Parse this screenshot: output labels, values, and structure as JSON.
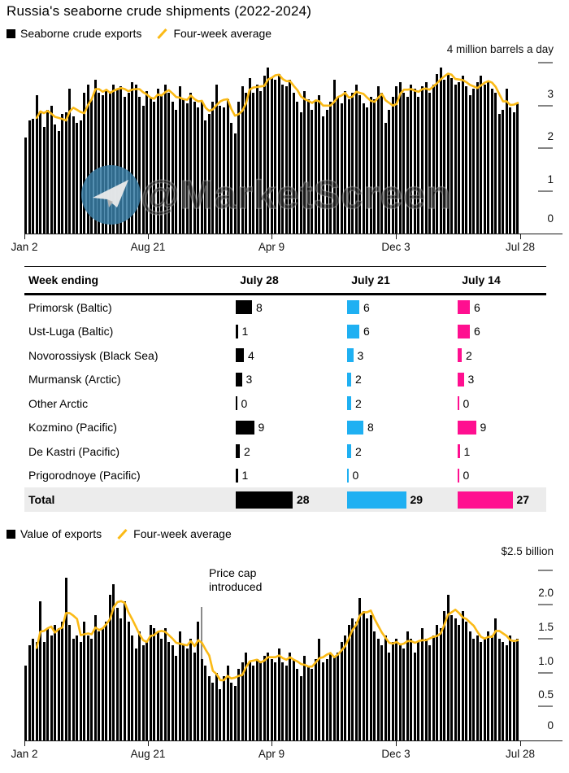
{
  "title": "Russia's seaborne crude shipments (2022-2024)",
  "watermark": {
    "text": "@MarketScreen",
    "icon": "telegram-icon"
  },
  "legend_top": {
    "bar_label": "Seaborne crude exports",
    "line_label": "Four-week average"
  },
  "legend_bottom": {
    "bar_label": "Value of exports",
    "line_label": "Four-week average"
  },
  "colors": {
    "bars": "#000000",
    "avg_line": "#fbba16",
    "col_july28": "#000000",
    "col_july21": "#1fb0f2",
    "col_july14": "#ff0f90",
    "total_row_bg": "#ececec",
    "watermark_blue": "#387da5"
  },
  "chart_data": [
    {
      "type": "bar",
      "name": "seaborne-crude-exports-volume",
      "y_axis": {
        "unit_label": "4 million barrels a day",
        "max": 4,
        "ticks": [
          3,
          2,
          1,
          0
        ],
        "tick_labels": [
          "3",
          "2",
          "1",
          "0"
        ],
        "dash_ticks": [
          4,
          3,
          2,
          1
        ]
      },
      "x_tick_labels": [
        "Jan 2",
        "Aug 21",
        "Apr 9",
        "Dec 3",
        "Jul 28"
      ],
      "series": [
        {
          "name": "Seaborne crude exports",
          "unit": "million barrels a day",
          "values": [
            2.25,
            2.65,
            2.7,
            3.25,
            2.85,
            2.5,
            2.9,
            3.0,
            2.55,
            2.4,
            2.8,
            2.85,
            3.4,
            2.75,
            2.6,
            2.65,
            3.3,
            3.5,
            3.15,
            3.6,
            3.3,
            3.25,
            3.35,
            3.3,
            3.5,
            3.4,
            3.45,
            3.2,
            3.3,
            3.55,
            3.5,
            3.2,
            3.0,
            3.35,
            3.2,
            3.1,
            3.4,
            3.25,
            3.5,
            3.3,
            3.1,
            2.9,
            3.45,
            3.15,
            3.05,
            3.3,
            3.1,
            2.95,
            3.1,
            2.65,
            2.8,
            3.1,
            3.5,
            3.0,
            2.95,
            3.15,
            2.6,
            2.35,
            3.1,
            3.45,
            3.3,
            3.65,
            3.3,
            3.5,
            3.35,
            3.7,
            3.9,
            3.65,
            3.6,
            3.75,
            3.5,
            3.45,
            3.6,
            3.3,
            3.1,
            2.85,
            3.35,
            3.15,
            2.9,
            3.1,
            3.25,
            2.75,
            2.9,
            3.1,
            3.6,
            3.2,
            3.05,
            3.35,
            3.15,
            3.3,
            3.5,
            3.25,
            3.05,
            2.95,
            3.2,
            3.15,
            3.45,
            3.3,
            2.6,
            2.9,
            3.2,
            3.45,
            3.55,
            3.3,
            3.2,
            3.5,
            3.4,
            3.2,
            3.45,
            3.55,
            3.3,
            3.5,
            3.75,
            3.9,
            3.6,
            3.75,
            3.65,
            3.5,
            3.55,
            3.7,
            3.45,
            3.25,
            3.4,
            3.55,
            3.7,
            3.5,
            3.55,
            3.4,
            3.3,
            2.8,
            2.9,
            3.4,
            2.95,
            2.85,
            3.05
          ]
        },
        {
          "name": "Four-week average",
          "derivation": "4-week rolling mean of exports series"
        }
      ]
    },
    {
      "type": "bar",
      "name": "value-of-exports",
      "y_axis": {
        "unit_label": "$2.5 billion",
        "max": 2.5,
        "ticks": [
          2.0,
          1.5,
          1.0,
          0.5,
          0
        ],
        "tick_labels": [
          "2.0",
          "1.5",
          "1.0",
          "0.5",
          "0"
        ],
        "dash_ticks": [
          2.5,
          2.0,
          1.5,
          1.0,
          0.5
        ]
      },
      "x_tick_labels": [
        "Jan 2",
        "Aug 21",
        "Apr 9",
        "Dec 3",
        "Jul 28"
      ],
      "annotation": {
        "line1": "Price cap",
        "line2": "introduced"
      },
      "series": [
        {
          "name": "Value of exports",
          "unit": "$ billion",
          "values": [
            1.1,
            1.4,
            1.5,
            1.45,
            2.05,
            1.45,
            1.65,
            1.55,
            1.7,
            1.65,
            1.75,
            2.4,
            1.7,
            1.5,
            1.55,
            1.45,
            1.75,
            1.55,
            1.5,
            1.85,
            1.6,
            1.65,
            1.75,
            2.15,
            2.3,
            1.95,
            1.8,
            2.05,
            1.75,
            1.55,
            1.35,
            1.6,
            1.4,
            1.45,
            1.7,
            1.65,
            1.6,
            1.5,
            1.65,
            1.45,
            1.4,
            1.25,
            1.6,
            1.4,
            1.35,
            1.5,
            1.3,
            1.75,
            1.2,
            1.1,
            0.95,
            0.85,
            1.0,
            0.75,
            0.95,
            1.1,
            0.85,
            0.8,
            1.05,
            1.15,
            1.3,
            1.15,
            1.1,
            1.2,
            1.15,
            1.25,
            1.3,
            1.2,
            1.15,
            1.35,
            1.15,
            1.1,
            1.3,
            1.2,
            1.05,
            0.95,
            1.25,
            1.1,
            1.05,
            1.2,
            1.5,
            1.15,
            1.2,
            1.3,
            1.25,
            1.3,
            1.45,
            1.55,
            1.7,
            1.8,
            1.75,
            2.1,
            1.9,
            1.8,
            1.85,
            1.6,
            1.5,
            1.4,
            1.55,
            1.3,
            1.45,
            1.5,
            1.4,
            1.35,
            1.6,
            1.5,
            1.3,
            1.45,
            1.65,
            1.5,
            1.4,
            1.55,
            1.7,
            1.65,
            1.9,
            2.15,
            1.85,
            1.8,
            1.7,
            1.9,
            1.75,
            1.6,
            1.5,
            1.55,
            1.45,
            1.5,
            1.6,
            1.55,
            1.8,
            1.5,
            1.45,
            1.4,
            1.55,
            1.45,
            1.5
          ]
        },
        {
          "name": "Four-week average",
          "derivation": "4-week rolling mean of value series"
        }
      ]
    }
  ],
  "table": {
    "header": [
      "Week ending",
      "July 28",
      "July 21",
      "July 14"
    ],
    "rows": [
      {
        "label": "Primorsk (Baltic)",
        "values": [
          8,
          6,
          6
        ]
      },
      {
        "label": "Ust-Luga (Baltic)",
        "values": [
          1,
          6,
          6
        ]
      },
      {
        "label": "Novorossiysk (Black Sea)",
        "values": [
          4,
          3,
          2
        ]
      },
      {
        "label": "Murmansk (Arctic)",
        "values": [
          3,
          2,
          3
        ]
      },
      {
        "label": "Other Arctic",
        "values": [
          0,
          2,
          0
        ]
      },
      {
        "label": "Kozmino (Pacific)",
        "values": [
          9,
          8,
          9
        ]
      },
      {
        "label": "De Kastri (Pacific)",
        "values": [
          2,
          2,
          1
        ]
      },
      {
        "label": "Prigorodnoye (Pacific)",
        "values": [
          1,
          0,
          0
        ]
      }
    ],
    "total": {
      "label": "Total",
      "values": [
        28,
        29,
        27
      ]
    }
  }
}
